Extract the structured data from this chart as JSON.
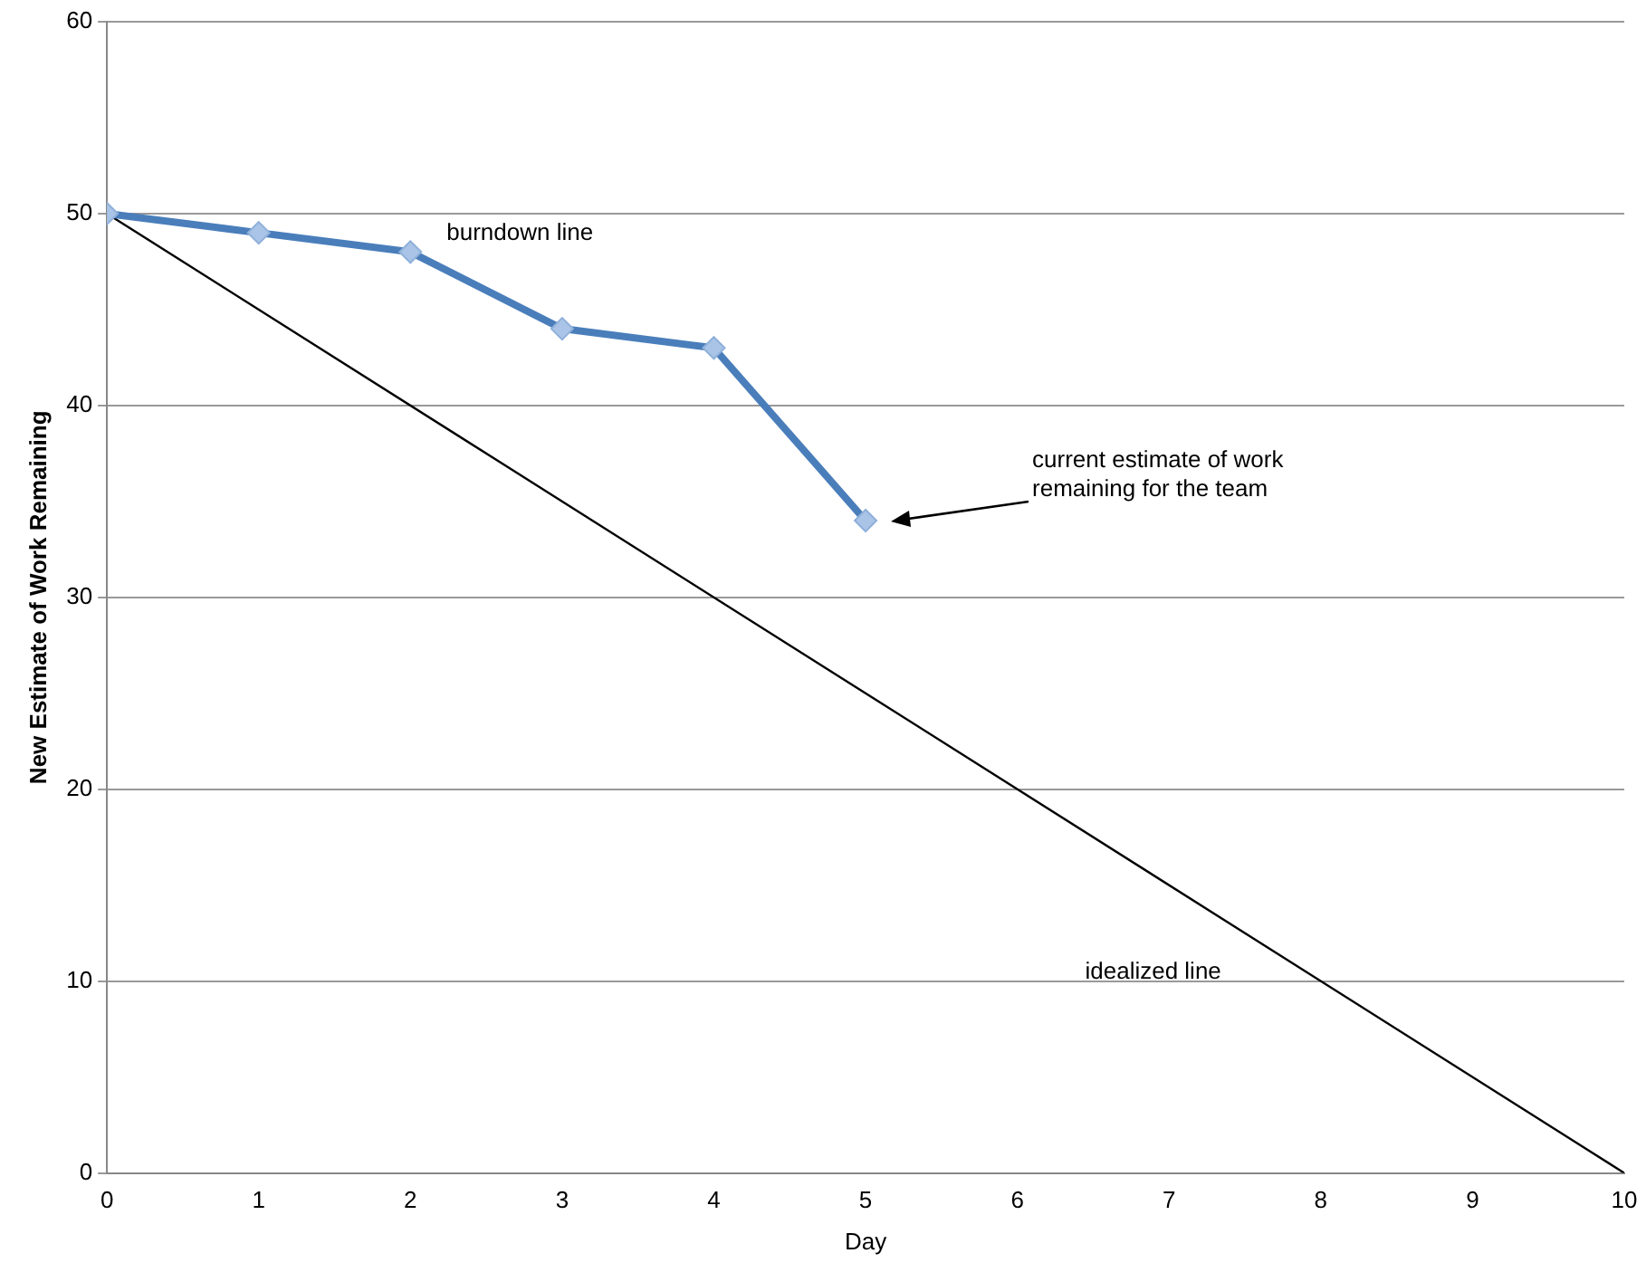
{
  "chart_data": {
    "type": "line",
    "xlabel": "Day",
    "ylabel": "New Estimate of Work Remaining",
    "xlim": [
      0,
      10
    ],
    "xticks": [
      0,
      1,
      2,
      3,
      4,
      5,
      6,
      7,
      8,
      9,
      10
    ],
    "ylim": [
      0,
      60
    ],
    "yticks": [
      0,
      10,
      20,
      30,
      40,
      50,
      60
    ],
    "grid": "y",
    "legend": false,
    "line_style": "solid",
    "series": [
      {
        "name": "burndown line",
        "color": "#4a7ebb",
        "marker": "diamond",
        "x": [
          0,
          1,
          2,
          3,
          4,
          5
        ],
        "values": [
          50,
          49,
          48,
          44,
          43,
          34
        ]
      },
      {
        "name": "idealized line",
        "color": "#000000",
        "marker": "none",
        "x": [
          0,
          10
        ],
        "values": [
          50,
          0
        ]
      }
    ],
    "annotations": [
      "current estimate of work remaining for the team"
    ]
  }
}
